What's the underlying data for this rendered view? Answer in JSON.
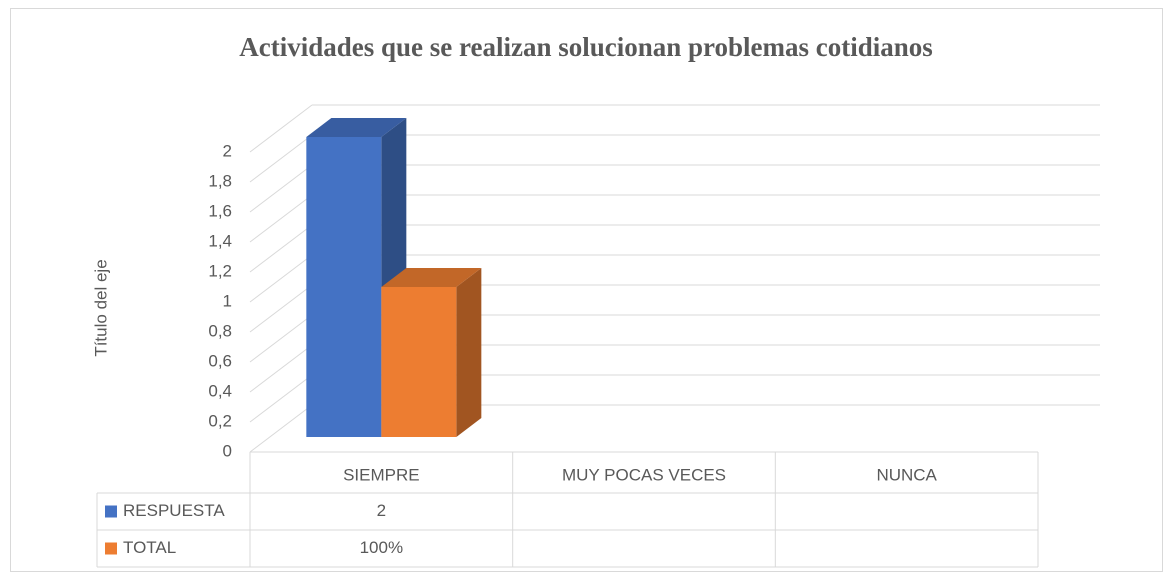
{
  "chart_data": {
    "type": "bar3d",
    "title": "Actividades que se realizan solucionan problemas cotidianos",
    "y_label": "Título del eje",
    "categories": [
      "SIEMPRE",
      "MUY POCAS VECES",
      "NUNCA"
    ],
    "series": [
      {
        "name": "RESPUESTA",
        "color": "#4472c4",
        "values": [
          2,
          null,
          null
        ]
      },
      {
        "name": "TOTAL",
        "color": "#ed7d31",
        "values": [
          1,
          null,
          null
        ],
        "value_labels": [
          "100%",
          null,
          null
        ]
      }
    ],
    "ylim": [
      0,
      2
    ],
    "yticks": [
      0,
      {
        "value": 0.2,
        "label": "0,2"
      },
      {
        "value": 0.4,
        "label": "0,4"
      },
      {
        "value": 0.6,
        "label": "0,6"
      },
      {
        "value": 0.8,
        "label": "0,8"
      },
      1,
      {
        "value": 1.2,
        "label": "1,2"
      },
      {
        "value": 1.4,
        "label": "1,4"
      },
      {
        "value": 1.6,
        "label": "1,6"
      },
      {
        "value": 1.8,
        "label": "1,8"
      },
      2
    ],
    "grid": true,
    "data_table": true
  }
}
